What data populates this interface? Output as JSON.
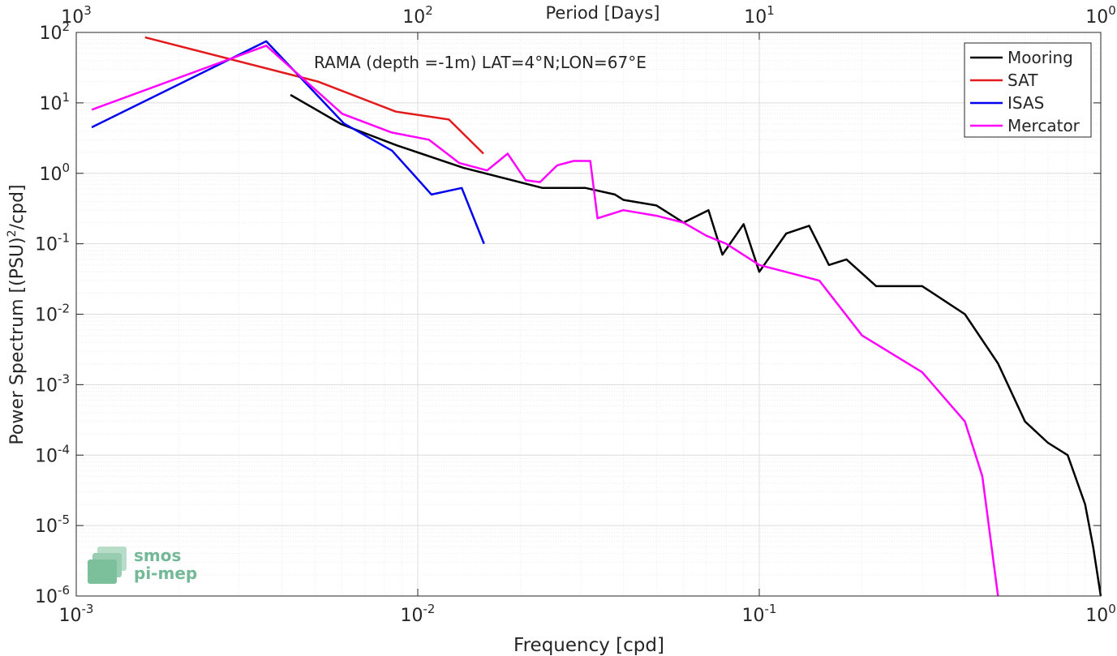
{
  "chart_data": {
    "type": "line",
    "title": "RAMA (depth =-1m) LAT=4°N;LON=67°E",
    "xlabel": "Frequency [cpd]",
    "ylabel_main": "Power Spectrum [(PSU)",
    "ylabel_sup": "2",
    "ylabel_tail": "/cpd]",
    "top_axis_label": "Period [Days]",
    "x_scale": "log",
    "y_scale": "log",
    "xlim": [
      0.001,
      1
    ],
    "ylim": [
      1e-06,
      100
    ],
    "grid": true,
    "minor_grid": true,
    "legend_position": "top-right",
    "x_ticks": [
      {
        "base": "10",
        "exp": "-3"
      },
      {
        "base": "10",
        "exp": "-2"
      },
      {
        "base": "10",
        "exp": "-1"
      },
      {
        "base": "10",
        "exp": "0"
      }
    ],
    "top_ticks": [
      {
        "base": "10",
        "exp": "3"
      },
      {
        "base": "10",
        "exp": "2"
      },
      {
        "base": "10",
        "exp": "1"
      },
      {
        "base": "10",
        "exp": "0"
      }
    ],
    "y_ticks": [
      {
        "base": "10",
        "exp": "2"
      },
      {
        "base": "10",
        "exp": "1"
      },
      {
        "base": "10",
        "exp": "0"
      },
      {
        "base": "10",
        "exp": "-1"
      },
      {
        "base": "10",
        "exp": "-2"
      },
      {
        "base": "10",
        "exp": "-3"
      },
      {
        "base": "10",
        "exp": "-4"
      },
      {
        "base": "10",
        "exp": "-5"
      },
      {
        "base": "10",
        "exp": "-6"
      }
    ],
    "series": [
      {
        "name": "Mooring",
        "color": "#000000",
        "x": [
          0.00424,
          0.00596,
          0.00867,
          0.0136,
          0.0232,
          0.031,
          0.0378,
          0.04,
          0.05,
          0.06,
          0.071,
          0.078,
          0.09,
          0.1,
          0.12,
          0.14,
          0.16,
          0.18,
          0.22,
          0.3,
          0.4,
          0.5,
          0.6,
          0.7,
          0.8,
          0.9,
          0.95,
          1.0
        ],
        "y": [
          13,
          5,
          2.5,
          1.2,
          0.62,
          0.62,
          0.5,
          0.42,
          0.35,
          0.2,
          0.3,
          0.07,
          0.19,
          0.04,
          0.14,
          0.18,
          0.05,
          0.06,
          0.025,
          0.025,
          0.01,
          0.002,
          0.0003,
          0.00015,
          0.0001,
          2e-05,
          5e-06,
          1e-06
        ]
      },
      {
        "name": "SAT",
        "color": "#e31a1c",
        "x": [
          0.00159,
          0.00511,
          0.00863,
          0.01234,
          0.01557
        ],
        "y": [
          85,
          20,
          7.5,
          5.8,
          1.9
        ]
      },
      {
        "name": "ISAS",
        "color": "#0000ee",
        "x": [
          0.00111,
          0.0036,
          0.00608,
          0.00841,
          0.01097,
          0.01345,
          0.01563
        ],
        "y": [
          4.5,
          75,
          5.1,
          2.1,
          0.5,
          0.62,
          0.1
        ]
      },
      {
        "name": "Mercator",
        "color": "#ff00ff",
        "x": [
          0.00111,
          0.0036,
          0.00601,
          0.00839,
          0.01078,
          0.01324,
          0.01596,
          0.01833,
          0.0207,
          0.0228,
          0.0256,
          0.0286,
          0.032,
          0.0336,
          0.04,
          0.05,
          0.06,
          0.07,
          0.08,
          0.1,
          0.15,
          0.2,
          0.3,
          0.4,
          0.45,
          0.5
        ],
        "y": [
          8,
          65,
          7,
          3.8,
          3,
          1.4,
          1.1,
          1.9,
          0.8,
          0.75,
          1.3,
          1.5,
          1.5,
          0.23,
          0.3,
          0.25,
          0.2,
          0.13,
          0.1,
          0.05,
          0.03,
          0.005,
          0.0015,
          0.0003,
          5e-05,
          1e-06
        ]
      }
    ]
  },
  "logo": {
    "line1": "smos",
    "line2": "pi-mep",
    "color": "#74b997"
  }
}
